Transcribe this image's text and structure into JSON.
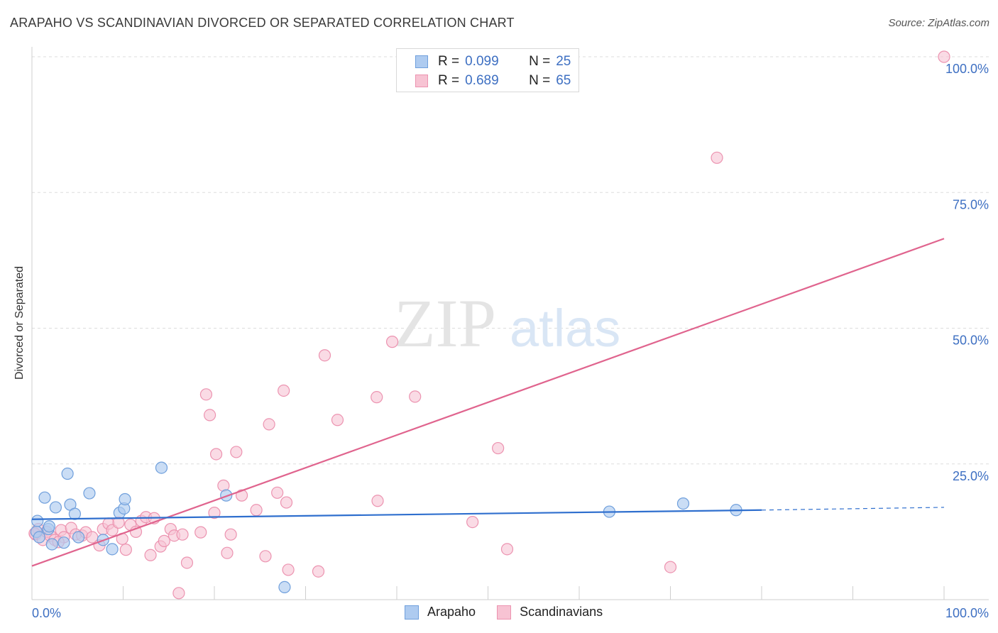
{
  "title": "ARAPAHO VS SCANDINAVIAN DIVORCED OR SEPARATED CORRELATION CHART",
  "source": "Source: ZipAtlas.com",
  "watermark": {
    "zip": "ZIP",
    "atlas": "atlas"
  },
  "legend": {
    "series1": {
      "r_label": "R =",
      "r_value": "0.099",
      "n_label": "N =",
      "n_value": "25"
    },
    "series2": {
      "r_label": "R =",
      "r_value": "0.689",
      "n_label": "N =",
      "n_value": "65"
    }
  },
  "bottom_legend": {
    "series1": "Arapaho",
    "series2": "Scandinavians"
  },
  "colors": {
    "arapaho_fill": "#aecbf0",
    "arapaho_stroke": "#6f9fdc",
    "arapaho_line": "#2f6fce",
    "scand_fill": "#f7c3d3",
    "scand_stroke": "#ec93b0",
    "scand_line": "#e0648e",
    "tick_label": "#3d6fc2",
    "grid": "#dddddd"
  },
  "chart_data": {
    "type": "scatter",
    "title": "ARAPAHO VS SCANDINAVIAN DIVORCED OR SEPARATED CORRELATION CHART",
    "xlabel": "",
    "ylabel": "Divorced or Separated",
    "xlim": [
      0,
      100
    ],
    "ylim": [
      0,
      100
    ],
    "x_tick_labels": [
      "0.0%",
      "100.0%"
    ],
    "y_ticks": [
      25,
      50,
      75,
      100
    ],
    "y_tick_labels": [
      "25.0%",
      "50.0%",
      "75.0%",
      "100.0%"
    ],
    "series": [
      {
        "name": "Arapaho",
        "r": 0.099,
        "n": 25,
        "trend": {
          "x0": 0,
          "y0": 14.8,
          "x1": 80,
          "y1": 16.5,
          "dashed_to_x": 100,
          "dashed_to_y": 17.0
        },
        "points": [
          [
            0.5,
            12.5
          ],
          [
            0.6,
            14.5
          ],
          [
            0.8,
            11.5
          ],
          [
            1.8,
            13.0
          ],
          [
            1.9,
            13.5
          ],
          [
            1.4,
            18.8
          ],
          [
            2.2,
            10.2
          ],
          [
            2.6,
            17.0
          ],
          [
            3.5,
            10.5
          ],
          [
            3.9,
            23.2
          ],
          [
            4.2,
            17.5
          ],
          [
            4.7,
            15.8
          ],
          [
            5.1,
            11.5
          ],
          [
            6.3,
            19.6
          ],
          [
            7.8,
            11.0
          ],
          [
            8.8,
            9.3
          ],
          [
            9.6,
            16.0
          ],
          [
            10.1,
            16.8
          ],
          [
            10.2,
            18.5
          ],
          [
            14.2,
            24.3
          ],
          [
            21.3,
            19.2
          ],
          [
            27.7,
            2.3
          ],
          [
            63.3,
            16.2
          ],
          [
            71.4,
            17.7
          ],
          [
            77.2,
            16.5
          ]
        ]
      },
      {
        "name": "Scandinavians",
        "r": 0.689,
        "n": 65,
        "trend": {
          "x0": 0,
          "y0": 6.2,
          "x1": 100,
          "y1": 66.5
        },
        "points": [
          [
            0.4,
            12.0
          ],
          [
            0.7,
            13.0
          ],
          [
            1.2,
            11.0
          ],
          [
            1.6,
            12.5
          ],
          [
            2.0,
            11.8
          ],
          [
            2.5,
            11.0
          ],
          [
            3.2,
            12.8
          ],
          [
            3.5,
            11.5
          ],
          [
            4.3,
            13.2
          ],
          [
            4.8,
            12.0
          ],
          [
            5.5,
            11.8
          ],
          [
            5.9,
            12.4
          ],
          [
            6.6,
            11.5
          ],
          [
            7.4,
            10.0
          ],
          [
            7.8,
            13.0
          ],
          [
            8.4,
            14.0
          ],
          [
            8.8,
            12.8
          ],
          [
            9.5,
            14.2
          ],
          [
            9.9,
            11.2
          ],
          [
            10.3,
            9.2
          ],
          [
            10.8,
            13.8
          ],
          [
            11.4,
            12.5
          ],
          [
            12.0,
            14.5
          ],
          [
            12.5,
            15.2
          ],
          [
            13.0,
            8.2
          ],
          [
            13.4,
            15.0
          ],
          [
            14.1,
            9.8
          ],
          [
            14.5,
            10.8
          ],
          [
            15.2,
            13.0
          ],
          [
            15.6,
            11.8
          ],
          [
            16.5,
            12.0
          ],
          [
            17.0,
            6.8
          ],
          [
            16.1,
            1.2
          ],
          [
            18.5,
            12.4
          ],
          [
            19.1,
            37.8
          ],
          [
            19.5,
            34.0
          ],
          [
            20.0,
            16.0
          ],
          [
            20.2,
            26.8
          ],
          [
            21.0,
            21.0
          ],
          [
            21.4,
            8.6
          ],
          [
            21.8,
            12.0
          ],
          [
            22.4,
            27.2
          ],
          [
            23.0,
            19.2
          ],
          [
            24.6,
            16.5
          ],
          [
            25.6,
            8.0
          ],
          [
            26.0,
            32.3
          ],
          [
            26.9,
            19.7
          ],
          [
            27.6,
            38.5
          ],
          [
            27.9,
            17.9
          ],
          [
            28.1,
            5.5
          ],
          [
            31.4,
            5.2
          ],
          [
            32.1,
            45.0
          ],
          [
            33.5,
            33.1
          ],
          [
            37.8,
            37.3
          ],
          [
            37.9,
            18.2
          ],
          [
            39.5,
            47.5
          ],
          [
            42.0,
            37.4
          ],
          [
            48.3,
            14.3
          ],
          [
            51.1,
            27.9
          ],
          [
            52.1,
            9.3
          ],
          [
            70.0,
            6.0
          ],
          [
            75.1,
            81.4
          ],
          [
            100.0,
            100.0
          ],
          [
            0.3,
            12.2
          ],
          [
            2.9,
            10.6
          ]
        ]
      }
    ]
  }
}
